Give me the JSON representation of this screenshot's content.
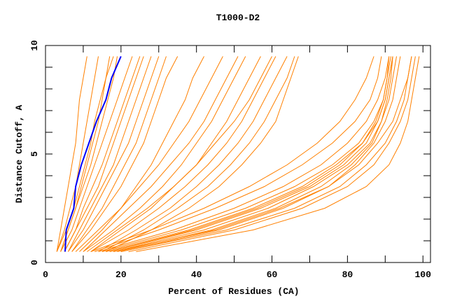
{
  "chart_data": {
    "type": "line",
    "title": "T1000-D2",
    "xlabel": "Percent of Residues (CA)",
    "ylabel": "Distance Cutoff, A",
    "xlim": [
      0,
      102
    ],
    "ylim": [
      0,
      10
    ],
    "xticks": [
      0,
      20,
      40,
      60,
      80,
      100
    ],
    "yticks": [
      0,
      5,
      10
    ],
    "grid": false,
    "legend": "none",
    "colors": {
      "series": "#ff8000",
      "highlight": "#0000ff",
      "axes": "#000000"
    },
    "cutoffs": [
      0.5,
      1.5,
      2.5,
      3.5,
      4.5,
      5.5,
      6.5,
      7.5,
      8.5,
      9.5
    ],
    "highlight": [
      5.2,
      5.5,
      7.5,
      8.0,
      9.5,
      11.5,
      13.5,
      16.0,
      17.5,
      20.0
    ],
    "series": [
      [
        3,
        5,
        6.5,
        8,
        9,
        10,
        11,
        12,
        13,
        14
      ],
      [
        3,
        5.5,
        7.5,
        9,
        10.5,
        12,
        13,
        14.5,
        16,
        17
      ],
      [
        4,
        6,
        8,
        10,
        12,
        13.5,
        15,
        16.5,
        18,
        19
      ],
      [
        4,
        7,
        9,
        11,
        13,
        15,
        17,
        19,
        21,
        23
      ],
      [
        5,
        8,
        10,
        12.5,
        15,
        17,
        19,
        21,
        23,
        25
      ],
      [
        5,
        8,
        11,
        14,
        16,
        18,
        20,
        22,
        24,
        26
      ],
      [
        6,
        9,
        12,
        15,
        18,
        20,
        22,
        24,
        26,
        28
      ],
      [
        6,
        10,
        13,
        16,
        19,
        22,
        24,
        26,
        28,
        30
      ],
      [
        7,
        11,
        15,
        18,
        21,
        24,
        26,
        28,
        30,
        32
      ],
      [
        7,
        12,
        16,
        20,
        23,
        26,
        28,
        30,
        32,
        35
      ],
      [
        3,
        4,
        5,
        6,
        7,
        8,
        8.5,
        9,
        10,
        11
      ],
      [
        4,
        6,
        8,
        9.5,
        11,
        12.5,
        14,
        15,
        16,
        18
      ],
      [
        8,
        14,
        20,
        25,
        30,
        34,
        38,
        41,
        44,
        47
      ],
      [
        10,
        16,
        22,
        28,
        33,
        38,
        42,
        45,
        48,
        51
      ],
      [
        10,
        18,
        25,
        31,
        36,
        40,
        44,
        47,
        50,
        53
      ],
      [
        12,
        20,
        28,
        34,
        40,
        44,
        48,
        51,
        54,
        57
      ],
      [
        12,
        22,
        30,
        37,
        43,
        48,
        52,
        55,
        58,
        61
      ],
      [
        14,
        24,
        33,
        40,
        46,
        51,
        55,
        58,
        61,
        64
      ],
      [
        15,
        26,
        35,
        43,
        49,
        54,
        58,
        61,
        64,
        66
      ],
      [
        16,
        28,
        38,
        46,
        52,
        57,
        61,
        63,
        65,
        67
      ],
      [
        9,
        15,
        20,
        24,
        28,
        31,
        34,
        37,
        39,
        42
      ],
      [
        11,
        19,
        27,
        34,
        40,
        45,
        50,
        54,
        57,
        60
      ],
      [
        16,
        38,
        55,
        68,
        77,
        84,
        88,
        90,
        91,
        92
      ],
      [
        17,
        40,
        57,
        70,
        79,
        85,
        88,
        90,
        91,
        92
      ],
      [
        18,
        42,
        59,
        71,
        80,
        86,
        89,
        90.5,
        91.5,
        92
      ],
      [
        15,
        36,
        53,
        66,
        76,
        83,
        87,
        89.5,
        90.5,
        91.5
      ],
      [
        19,
        44,
        61,
        73,
        81,
        86.5,
        89,
        91,
        92,
        93
      ],
      [
        14,
        34,
        50,
        63,
        73,
        80,
        85,
        88,
        90,
        91
      ],
      [
        20,
        46,
        63,
        75,
        82,
        87,
        90,
        92,
        93,
        94
      ],
      [
        17,
        39,
        56,
        69,
        78,
        84,
        87.5,
        89.5,
        90.5,
        91
      ],
      [
        22,
        50,
        68,
        80,
        87,
        91,
        94,
        96,
        97,
        98
      ],
      [
        20,
        48,
        66,
        78,
        85,
        90,
        93,
        95,
        96,
        97
      ],
      [
        24,
        55,
        74,
        85,
        91,
        94,
        96,
        97,
        98,
        99
      ],
      [
        18,
        45,
        62,
        75,
        83,
        88,
        92,
        94,
        96,
        97
      ],
      [
        13,
        30,
        45,
        58,
        68,
        76,
        82,
        86,
        88,
        89
      ],
      [
        12,
        28,
        42,
        54,
        64,
        72,
        78,
        82,
        85,
        87
      ]
    ]
  }
}
